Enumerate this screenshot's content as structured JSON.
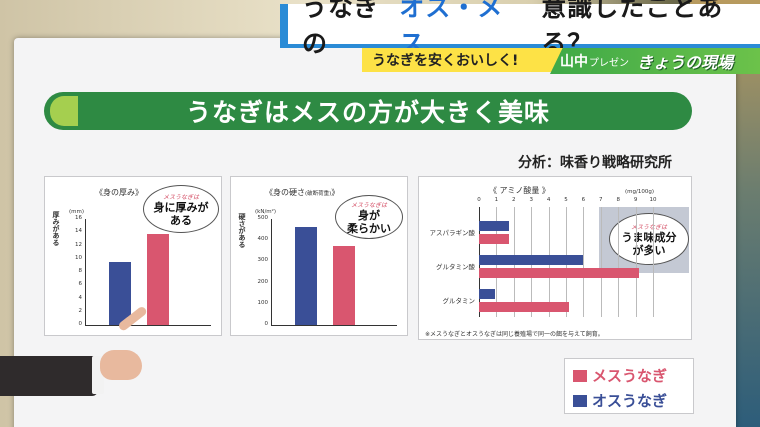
{
  "caption": {
    "main_part1": "うなぎの",
    "main_accent": "オス・メス",
    "main_part2": "意識したことある？",
    "sub": "うなぎを安くおいしく!",
    "corner_name": "山中",
    "corner_small": "プレゼン",
    "corner_show": "きょうの現場"
  },
  "banner": "うなぎはメスの方が大きく美味",
  "credit": "分析：味香り戦略研究所",
  "colors": {
    "female": "#d9566f",
    "male": "#3a4f97",
    "banner": "#2e8a43",
    "caption_blue": "#1f6fd1"
  },
  "legend": {
    "female": "メスうなぎ",
    "male": "オスうなぎ"
  },
  "chart_data": [
    {
      "type": "bar",
      "title": "《身の厚み》",
      "ylabel": "厚みがある",
      "unit": "(mm)",
      "yticks": [
        "16",
        "14",
        "12",
        "10",
        "8",
        "6",
        "4",
        "2",
        "0"
      ],
      "ylim": [
        0,
        16
      ],
      "series": [
        {
          "name": "オスうなぎ",
          "value": 9.5
        },
        {
          "name": "メスうなぎ",
          "value": 13.8
        }
      ],
      "callout_tag": "メスうなぎは",
      "callout": "身に厚みが\nある"
    },
    {
      "type": "bar",
      "title": "《身の硬さ",
      "title_note": "(破断荷重)",
      "title_end": "》",
      "ylabel": "硬さがある",
      "unit": "(kN/m²)",
      "yticks": [
        "500",
        "400",
        "300",
        "200",
        "100",
        "0"
      ],
      "ylim": [
        0,
        500
      ],
      "series": [
        {
          "name": "オスうなぎ",
          "value": 460
        },
        {
          "name": "メスうなぎ",
          "value": 375
        }
      ],
      "callout_tag": "メスうなぎは",
      "callout": "身が\n柔らかい"
    },
    {
      "type": "bar",
      "orientation": "horizontal",
      "title": "《 アミノ酸量 》",
      "unit": "(mg/100g)",
      "xticks": [
        "0",
        "1",
        "2",
        "3",
        "4",
        "5",
        "6",
        "7",
        "8",
        "9",
        "10"
      ],
      "xlim": [
        0,
        10
      ],
      "categories": [
        "アスパラギン酸",
        "グルタミン酸",
        "グルタミン"
      ],
      "series": [
        {
          "name": "オスうなぎ",
          "values": [
            1.7,
            6.0,
            0.9
          ]
        },
        {
          "name": "メスうなぎ",
          "values": [
            1.7,
            9.2,
            5.2
          ]
        }
      ],
      "callout_tag": "メスうなぎは",
      "callout": "うま味成分\nが多い",
      "footnote": "※メスうなぎとオスうなぎは同じ養殖場で同一の餌を与えて飼育。"
    }
  ]
}
